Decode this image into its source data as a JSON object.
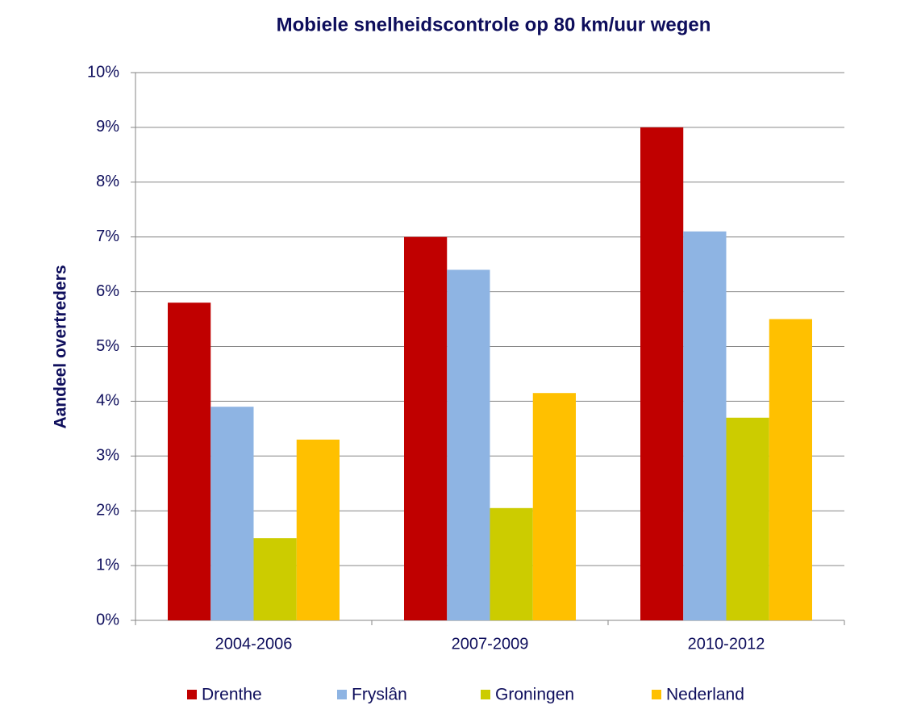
{
  "chart_data": {
    "type": "bar",
    "title": "Mobiele snelheidscontrole op 80 km/uur wegen",
    "y_label": "Aandeel overtreders",
    "categories": [
      "2004-2006",
      "2007-2009",
      "2010-2012"
    ],
    "series": [
      {
        "name": "Drenthe",
        "color": "#c00000",
        "values": [
          5.8,
          7.0,
          9.0
        ]
      },
      {
        "name": "Fryslân",
        "color": "#8eb4e3",
        "values": [
          3.9,
          6.4,
          7.1
        ]
      },
      {
        "name": "Groningen",
        "color": "#cccc00",
        "values": [
          1.5,
          2.05,
          3.7
        ]
      },
      {
        "name": "Nederland",
        "color": "#ffc000",
        "values": [
          3.3,
          4.15,
          5.5
        ]
      }
    ],
    "ylim": [
      0,
      10
    ],
    "yticks": [
      {
        "value": 0,
        "label": "0%"
      },
      {
        "value": 1,
        "label": "1%"
      },
      {
        "value": 2,
        "label": "2%"
      },
      {
        "value": 3,
        "label": "3%"
      },
      {
        "value": 4,
        "label": "4%"
      },
      {
        "value": 5,
        "label": "5%"
      },
      {
        "value": 6,
        "label": "6%"
      },
      {
        "value": 7,
        "label": "7%"
      },
      {
        "value": 8,
        "label": "8%"
      },
      {
        "value": 9,
        "label": "9%"
      },
      {
        "value": 10,
        "label": "10%"
      }
    ],
    "grid": true,
    "legend": "bottom"
  }
}
